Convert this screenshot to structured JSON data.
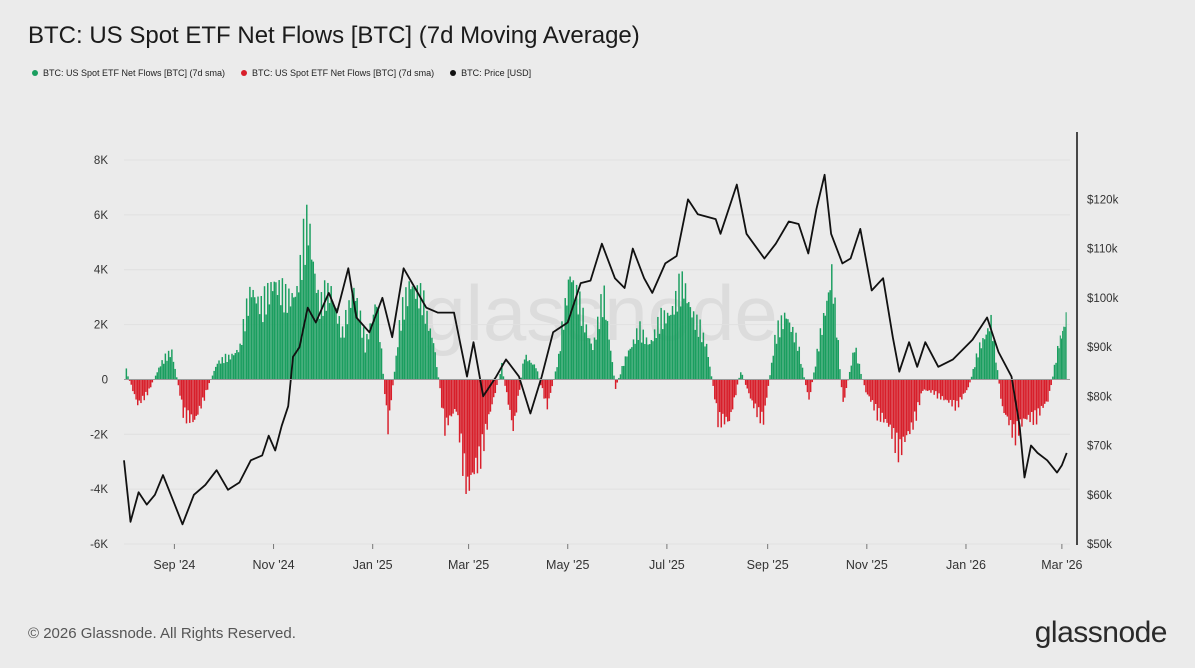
{
  "title": "BTC: US Spot ETF Net Flows [BTC] (7d Moving Average)",
  "legend": [
    {
      "label": "BTC: US Spot ETF Net Flows [BTC] (7d sma)",
      "color": "#1a9e5f"
    },
    {
      "label": "BTC: US Spot ETF Net Flows [BTC] (7d sma)",
      "color": "#d81e2a"
    },
    {
      "label": "BTC: Price [USD]",
      "color": "#111111"
    }
  ],
  "footer": "© 2026 Glassnode. All Rights Reserved.",
  "brand": "glassnode",
  "watermark": "glassnode",
  "chart_data": {
    "type": "bar",
    "xlabels": [
      "Sep '24",
      "Nov '24",
      "Jan '25",
      "Mar '25",
      "May '25",
      "Jul '25",
      "Sep '25",
      "Nov '25",
      "Jan '26",
      "Mar '26"
    ],
    "left_axis": {
      "ticks": [
        "8K",
        "6K",
        "4K",
        "2K",
        "0",
        "-2K",
        "-4K",
        "-6K"
      ],
      "ylim": [
        -6000,
        8000
      ]
    },
    "right_axis": {
      "ticks": [
        "$120k",
        "$110k",
        "$100k",
        "$90k",
        "$80k",
        "$70k",
        "$60k",
        "$50k"
      ],
      "ylim": [
        50000,
        128000
      ]
    },
    "colors": {
      "positive": "#1a9e5f",
      "negative": "#d81e2a",
      "price": "#111111"
    },
    "series": [
      {
        "name": "BTC: US Spot ETF Net Flows [BTC] (7d sma)",
        "kind": "bars",
        "points": [
          [
            "2024-08-02",
            400
          ],
          [
            "2024-08-09",
            -1200
          ],
          [
            "2024-08-16",
            -500
          ],
          [
            "2024-08-23",
            700
          ],
          [
            "2024-08-30",
            1300
          ],
          [
            "2024-09-06",
            -1500
          ],
          [
            "2024-09-13",
            -2000
          ],
          [
            "2024-09-20",
            -600
          ],
          [
            "2024-09-27",
            800
          ],
          [
            "2024-10-04",
            1000
          ],
          [
            "2024-10-11",
            1500
          ],
          [
            "2024-10-18",
            4300
          ],
          [
            "2024-10-25",
            3200
          ],
          [
            "2024-11-01",
            4700
          ],
          [
            "2024-11-08",
            3600
          ],
          [
            "2024-11-15",
            4200
          ],
          [
            "2024-11-22",
            7300
          ],
          [
            "2024-11-29",
            3300
          ],
          [
            "2024-12-06",
            4200
          ],
          [
            "2024-12-13",
            2000
          ],
          [
            "2024-12-20",
            4400
          ],
          [
            "2024-12-27",
            1500
          ],
          [
            "2025-01-03",
            3800
          ],
          [
            "2025-01-10",
            -2300
          ],
          [
            "2025-01-17",
            2400
          ],
          [
            "2025-01-24",
            4600
          ],
          [
            "2025-01-31",
            3600
          ],
          [
            "2025-02-07",
            1800
          ],
          [
            "2025-02-14",
            -2200
          ],
          [
            "2025-02-21",
            -1400
          ],
          [
            "2025-02-28",
            -5200
          ],
          [
            "2025-03-07",
            -3700
          ],
          [
            "2025-03-14",
            -1500
          ],
          [
            "2025-03-21",
            600
          ],
          [
            "2025-03-28",
            -2400
          ],
          [
            "2025-04-04",
            1100
          ],
          [
            "2025-04-11",
            600
          ],
          [
            "2025-04-18",
            -1300
          ],
          [
            "2025-04-25",
            1000
          ],
          [
            "2025-05-02",
            5100
          ],
          [
            "2025-05-09",
            3000
          ],
          [
            "2025-05-16",
            1500
          ],
          [
            "2025-05-23",
            3800
          ],
          [
            "2025-05-30",
            -400
          ],
          [
            "2025-06-06",
            1200
          ],
          [
            "2025-06-13",
            2200
          ],
          [
            "2025-06-20",
            1700
          ],
          [
            "2025-06-27",
            2700
          ],
          [
            "2025-07-04",
            3300
          ],
          [
            "2025-07-11",
            4400
          ],
          [
            "2025-07-18",
            2700
          ],
          [
            "2025-07-25",
            1600
          ],
          [
            "2025-08-01",
            -1800
          ],
          [
            "2025-08-08",
            -2000
          ],
          [
            "2025-08-15",
            400
          ],
          [
            "2025-08-22",
            -1100
          ],
          [
            "2025-08-29",
            -1900
          ],
          [
            "2025-09-05",
            1800
          ],
          [
            "2025-09-12",
            3100
          ],
          [
            "2025-09-19",
            1600
          ],
          [
            "2025-09-26",
            -1000
          ],
          [
            "2025-10-03",
            2000
          ],
          [
            "2025-10-10",
            5000
          ],
          [
            "2025-10-17",
            -1200
          ],
          [
            "2025-10-24",
            1500
          ],
          [
            "2025-10-31",
            -600
          ],
          [
            "2025-11-07",
            -1500
          ],
          [
            "2025-11-14",
            -2200
          ],
          [
            "2025-11-21",
            -3300
          ],
          [
            "2025-11-28",
            -2300
          ],
          [
            "2025-12-05",
            -500
          ],
          [
            "2025-12-12",
            -600
          ],
          [
            "2025-12-19",
            -1000
          ],
          [
            "2025-12-26",
            -1200
          ],
          [
            "2026-01-02",
            -400
          ],
          [
            "2026-01-09",
            1500
          ],
          [
            "2026-01-16",
            2700
          ],
          [
            "2026-01-23",
            -1400
          ],
          [
            "2026-01-30",
            -2500
          ],
          [
            "2026-02-06",
            -1900
          ],
          [
            "2026-02-13",
            -1700
          ],
          [
            "2026-02-20",
            -1000
          ],
          [
            "2026-02-27",
            1700
          ],
          [
            "2026-03-04",
            3100
          ]
        ]
      },
      {
        "name": "BTC: Price [USD]",
        "kind": "line",
        "points": [
          [
            "2024-08-01",
            67000
          ],
          [
            "2024-08-05",
            54500
          ],
          [
            "2024-08-10",
            60500
          ],
          [
            "2024-08-15",
            58000
          ],
          [
            "2024-08-20",
            60000
          ],
          [
            "2024-08-25",
            64000
          ],
          [
            "2024-08-31",
            59000
          ],
          [
            "2024-09-06",
            54000
          ],
          [
            "2024-09-13",
            60000
          ],
          [
            "2024-09-20",
            62000
          ],
          [
            "2024-09-27",
            65000
          ],
          [
            "2024-10-04",
            61000
          ],
          [
            "2024-10-11",
            62500
          ],
          [
            "2024-10-18",
            67000
          ],
          [
            "2024-10-25",
            68000
          ],
          [
            "2024-10-29",
            72000
          ],
          [
            "2024-11-02",
            69000
          ],
          [
            "2024-11-06",
            74000
          ],
          [
            "2024-11-10",
            78000
          ],
          [
            "2024-11-13",
            88000
          ],
          [
            "2024-11-17",
            90000
          ],
          [
            "2024-11-22",
            98000
          ],
          [
            "2024-11-27",
            95000
          ],
          [
            "2024-12-05",
            101000
          ],
          [
            "2024-12-10",
            97000
          ],
          [
            "2024-12-17",
            106000
          ],
          [
            "2024-12-22",
            96000
          ],
          [
            "2024-12-30",
            93000
          ],
          [
            "2025-01-07",
            100000
          ],
          [
            "2025-01-13",
            92000
          ],
          [
            "2025-01-20",
            106000
          ],
          [
            "2025-01-27",
            102000
          ],
          [
            "2025-02-03",
            98000
          ],
          [
            "2025-02-10",
            97000
          ],
          [
            "2025-02-20",
            97000
          ],
          [
            "2025-02-28",
            84000
          ],
          [
            "2025-03-04",
            91000
          ],
          [
            "2025-03-10",
            80000
          ],
          [
            "2025-03-18",
            84000
          ],
          [
            "2025-03-24",
            87500
          ],
          [
            "2025-04-01",
            84000
          ],
          [
            "2025-04-08",
            76500
          ],
          [
            "2025-04-15",
            84000
          ],
          [
            "2025-04-22",
            93000
          ],
          [
            "2025-05-01",
            95000
          ],
          [
            "2025-05-09",
            103000
          ],
          [
            "2025-05-15",
            103500
          ],
          [
            "2025-05-22",
            111000
          ],
          [
            "2025-05-30",
            104000
          ],
          [
            "2025-06-05",
            102000
          ],
          [
            "2025-06-10",
            110000
          ],
          [
            "2025-06-17",
            104000
          ],
          [
            "2025-06-22",
            101000
          ],
          [
            "2025-06-30",
            107000
          ],
          [
            "2025-07-07",
            108500
          ],
          [
            "2025-07-14",
            120000
          ],
          [
            "2025-07-20",
            117000
          ],
          [
            "2025-07-31",
            116000
          ],
          [
            "2025-08-03",
            113000
          ],
          [
            "2025-08-13",
            123000
          ],
          [
            "2025-08-19",
            113000
          ],
          [
            "2025-08-30",
            108000
          ],
          [
            "2025-09-06",
            111000
          ],
          [
            "2025-09-14",
            115500
          ],
          [
            "2025-09-20",
            115000
          ],
          [
            "2025-09-26",
            109000
          ],
          [
            "2025-10-01",
            118000
          ],
          [
            "2025-10-06",
            125000
          ],
          [
            "2025-10-10",
            113000
          ],
          [
            "2025-10-17",
            107000
          ],
          [
            "2025-10-22",
            108000
          ],
          [
            "2025-10-28",
            114000
          ],
          [
            "2025-11-04",
            101500
          ],
          [
            "2025-11-11",
            104000
          ],
          [
            "2025-11-17",
            92000
          ],
          [
            "2025-11-21",
            85000
          ],
          [
            "2025-11-27",
            91000
          ],
          [
            "2025-12-02",
            86000
          ],
          [
            "2025-12-07",
            91000
          ],
          [
            "2025-12-15",
            86000
          ],
          [
            "2025-12-24",
            87500
          ],
          [
            "2026-01-05",
            91500
          ],
          [
            "2026-01-14",
            96000
          ],
          [
            "2026-01-21",
            89000
          ],
          [
            "2026-01-29",
            84000
          ],
          [
            "2026-02-03",
            74000
          ],
          [
            "2026-02-06",
            63500
          ],
          [
            "2026-02-10",
            70000
          ],
          [
            "2026-02-14",
            68500
          ],
          [
            "2026-02-20",
            67000
          ],
          [
            "2026-02-26",
            64500
          ],
          [
            "2026-03-01",
            66000
          ],
          [
            "2026-03-04",
            68500
          ]
        ]
      }
    ]
  }
}
